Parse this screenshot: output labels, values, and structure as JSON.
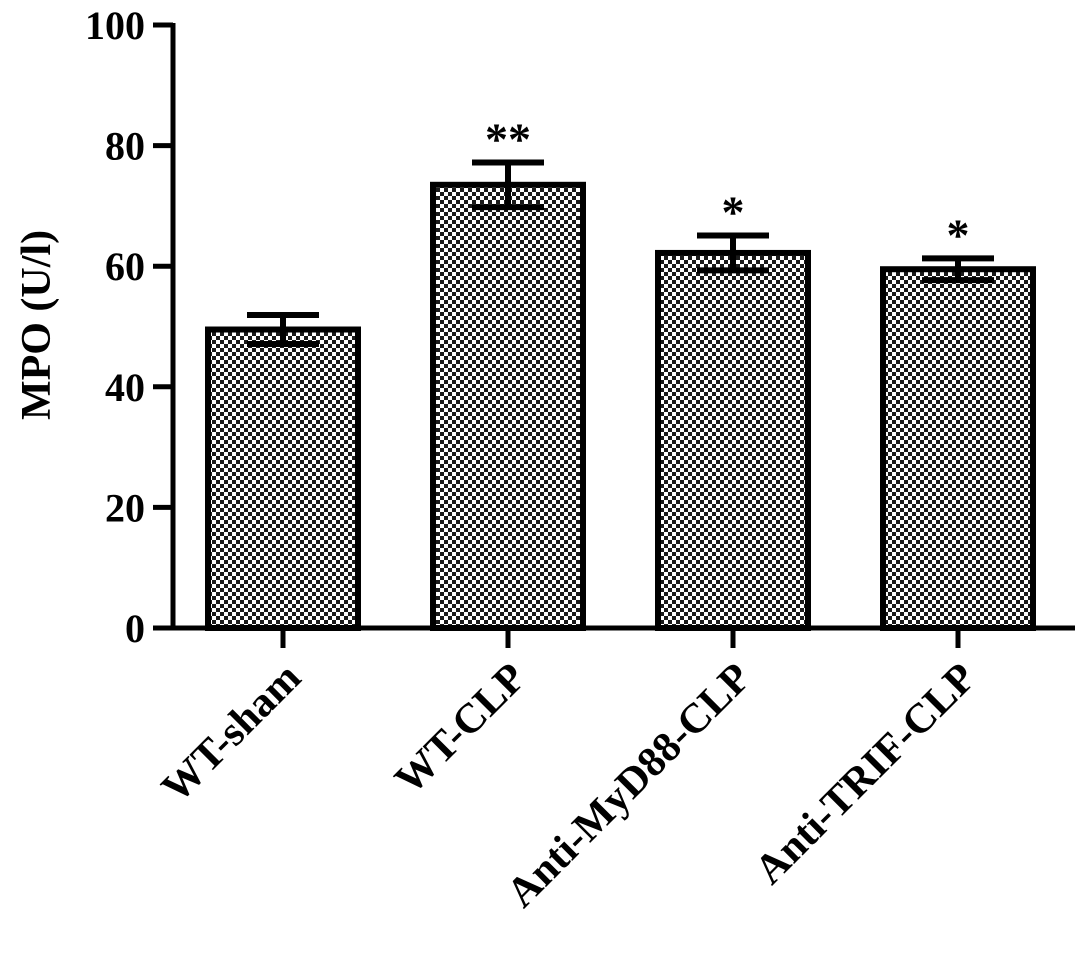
{
  "chart_data": {
    "type": "bar",
    "title": "",
    "xlabel": "",
    "ylabel": "MPO (U/l)",
    "ylim": [
      0,
      100
    ],
    "yticks": [
      0,
      20,
      40,
      60,
      80,
      100
    ],
    "tick_labels": [
      "0",
      "20",
      "40",
      "60",
      "80",
      "100"
    ],
    "grid": false,
    "legend": "none",
    "categories": [
      "WT-sham",
      "WT-CLP",
      "Anti-MyD88-CLP",
      "Anti-TRIF-CLP"
    ],
    "values": [
      49.5,
      73.5,
      62.2,
      59.5
    ],
    "error": [
      2.4,
      3.7,
      2.9,
      1.8
    ],
    "significance": [
      "",
      "**",
      "*",
      "*"
    ],
    "bar_fill": "checkered",
    "colors": {
      "bar_stroke": "#000000",
      "pattern_dark": "#1a1a1a",
      "pattern_light": "#ffffff",
      "axis": "#000000"
    }
  }
}
